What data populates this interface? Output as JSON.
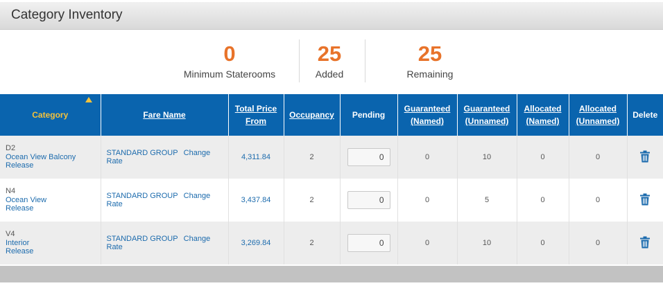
{
  "panel": {
    "title": "Category Inventory"
  },
  "stats": [
    {
      "value": "0",
      "label": "Minimum Staterooms"
    },
    {
      "value": "25",
      "label": "Added"
    },
    {
      "value": "25",
      "label": "Remaining"
    }
  ],
  "table": {
    "headers": {
      "category": "Category",
      "fare_name": "Fare Name",
      "total_price_1": "Total Price",
      "total_price_2": "From",
      "occupancy": "Occupancy",
      "pending": "Pending",
      "gn_1": "Guaranteed",
      "gn_2": "(Named)",
      "gu_1": "Guaranteed",
      "gu_2": "(Unnamed)",
      "an_1": "Allocated",
      "an_2": "(Named)",
      "au_1": "Allocated",
      "au_2": "(Unnamed)",
      "delete": "Delete"
    },
    "rows": [
      {
        "code": "D2",
        "cat_line1": "Ocean View Balcony",
        "cat_line2": "Release",
        "fare": "STANDARD GROUP",
        "change": "Change Rate",
        "price": "4,311.84",
        "occupancy": "2",
        "pending": "0",
        "gn": "0",
        "gu": "10",
        "an": "0",
        "au": "0"
      },
      {
        "code": "N4",
        "cat_line1": "Ocean View",
        "cat_line2": "Release",
        "fare": "STANDARD GROUP",
        "change": "Change Rate",
        "price": "3,437.84",
        "occupancy": "2",
        "pending": "0",
        "gn": "0",
        "gu": "5",
        "an": "0",
        "au": "0"
      },
      {
        "code": "V4",
        "cat_line1": "Interior",
        "cat_line2": "Release",
        "fare": "STANDARD GROUP",
        "change": "Change Rate",
        "price": "3,269.84",
        "occupancy": "2",
        "pending": "0",
        "gn": "0",
        "gu": "10",
        "an": "0",
        "au": "0"
      }
    ]
  },
  "icons": {
    "sort": "sort-asc-icon",
    "delete": "trash-icon"
  },
  "colors": {
    "accent_orange": "#e8732a",
    "header_blue": "#0a64ae",
    "sort_yellow": "#f5c23b",
    "link_blue": "#1c6bad"
  }
}
